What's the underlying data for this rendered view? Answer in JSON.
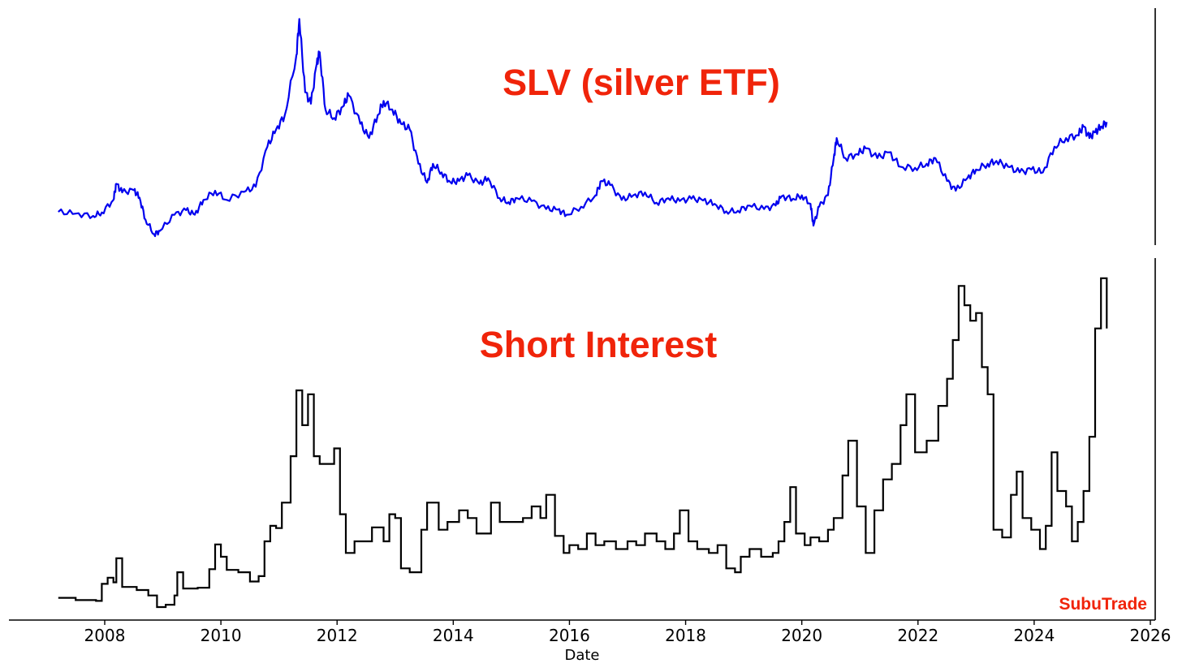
{
  "chart_data": [
    {
      "type": "line",
      "title": "SLV (silver ETF)",
      "color": "#0000ee",
      "grid": false,
      "series": [
        {
          "name": "",
          "points": [
            [
              2007.2,
              14.1
            ],
            [
              2007.5,
              13.8
            ],
            [
              2007.8,
              13.4
            ],
            [
              2007.95,
              14.0
            ],
            [
              2008.15,
              16.2
            ],
            [
              2008.2,
              19.0
            ],
            [
              2008.3,
              17.5
            ],
            [
              2008.5,
              17.9
            ],
            [
              2008.6,
              16.6
            ],
            [
              2008.7,
              12.8
            ],
            [
              2008.85,
              10.2
            ],
            [
              2008.95,
              10.8
            ],
            [
              2009.2,
              13.6
            ],
            [
              2009.4,
              14.4
            ],
            [
              2009.55,
              13.6
            ],
            [
              2009.7,
              16.2
            ],
            [
              2009.9,
              17.8
            ],
            [
              2010.1,
              16.2
            ],
            [
              2010.4,
              17.6
            ],
            [
              2010.6,
              18.5
            ],
            [
              2010.8,
              25.5
            ],
            [
              2010.95,
              28.5
            ],
            [
              2011.1,
              31.0
            ],
            [
              2011.3,
              41.5
            ],
            [
              2011.35,
              47.8
            ],
            [
              2011.45,
              35.0
            ],
            [
              2011.55,
              33.0
            ],
            [
              2011.65,
              40.0
            ],
            [
              2011.7,
              42.0
            ],
            [
              2011.8,
              32.0
            ],
            [
              2011.95,
              30.5
            ],
            [
              2012.1,
              32.5
            ],
            [
              2012.2,
              34.5
            ],
            [
              2012.4,
              29.5
            ],
            [
              2012.55,
              27.0
            ],
            [
              2012.7,
              31.0
            ],
            [
              2012.8,
              33.5
            ],
            [
              2012.95,
              32.0
            ],
            [
              2013.1,
              29.5
            ],
            [
              2013.25,
              28.5
            ],
            [
              2013.4,
              22.5
            ],
            [
              2013.55,
              19.2
            ],
            [
              2013.65,
              22.5
            ],
            [
              2013.8,
              21.0
            ],
            [
              2013.95,
              19.3
            ],
            [
              2014.1,
              19.5
            ],
            [
              2014.25,
              20.5
            ],
            [
              2014.45,
              19.0
            ],
            [
              2014.6,
              20.0
            ],
            [
              2014.8,
              16.5
            ],
            [
              2014.95,
              15.8
            ],
            [
              2015.1,
              16.5
            ],
            [
              2015.35,
              16.0
            ],
            [
              2015.6,
              14.6
            ],
            [
              2015.8,
              14.5
            ],
            [
              2015.95,
              13.6
            ],
            [
              2016.2,
              15.0
            ],
            [
              2016.45,
              17.0
            ],
            [
              2016.55,
              19.5
            ],
            [
              2016.7,
              18.8
            ],
            [
              2016.9,
              16.2
            ],
            [
              2017.1,
              17.0
            ],
            [
              2017.3,
              17.5
            ],
            [
              2017.5,
              15.7
            ],
            [
              2017.7,
              16.5
            ],
            [
              2017.9,
              16.0
            ],
            [
              2018.1,
              16.4
            ],
            [
              2018.3,
              16.1
            ],
            [
              2018.5,
              15.5
            ],
            [
              2018.7,
              14.2
            ],
            [
              2018.9,
              14.3
            ],
            [
              2019.1,
              15.2
            ],
            [
              2019.35,
              14.6
            ],
            [
              2019.55,
              15.2
            ],
            [
              2019.65,
              16.8
            ],
            [
              2019.85,
              16.4
            ],
            [
              2020.0,
              17.0
            ],
            [
              2020.15,
              15.5
            ],
            [
              2020.2,
              11.7
            ],
            [
              2020.3,
              15.0
            ],
            [
              2020.45,
              17.0
            ],
            [
              2020.55,
              23.5
            ],
            [
              2020.6,
              27.0
            ],
            [
              2020.75,
              23.5
            ],
            [
              2020.95,
              24.2
            ],
            [
              2021.1,
              25.2
            ],
            [
              2021.3,
              23.5
            ],
            [
              2021.5,
              24.5
            ],
            [
              2021.7,
              22.0
            ],
            [
              2021.95,
              21.8
            ],
            [
              2022.15,
              22.5
            ],
            [
              2022.3,
              23.5
            ],
            [
              2022.5,
              19.5
            ],
            [
              2022.65,
              17.8
            ],
            [
              2022.85,
              20.0
            ],
            [
              2023.0,
              21.5
            ],
            [
              2023.2,
              22.5
            ],
            [
              2023.35,
              23.0
            ],
            [
              2023.55,
              22.0
            ],
            [
              2023.75,
              21.0
            ],
            [
              2023.95,
              21.5
            ],
            [
              2024.15,
              21.0
            ],
            [
              2024.35,
              25.5
            ],
            [
              2024.55,
              27.0
            ],
            [
              2024.75,
              27.5
            ],
            [
              2024.85,
              29.0
            ],
            [
              2024.95,
              27.0
            ],
            [
              2025.05,
              28.0
            ],
            [
              2025.15,
              29.0
            ],
            [
              2025.25,
              29.8
            ]
          ]
        }
      ]
    },
    {
      "type": "line",
      "title": "Short Interest",
      "color": "#000000",
      "grid": false,
      "xlabel": "Date",
      "xticks": [
        "2008",
        "2010",
        "2012",
        "2014",
        "2016",
        "2018",
        "2020",
        "2022",
        "2024",
        "2026"
      ],
      "series": [
        {
          "name": "",
          "points": [
            [
              2007.2,
              5.2
            ],
            [
              2007.5,
              4.9
            ],
            [
              2007.85,
              4.8
            ],
            [
              2007.95,
              7.0
            ],
            [
              2008.05,
              7.8
            ],
            [
              2008.15,
              7.2
            ],
            [
              2008.2,
              10.3
            ],
            [
              2008.3,
              6.6
            ],
            [
              2008.55,
              6.2
            ],
            [
              2008.75,
              5.5
            ],
            [
              2008.9,
              4.0
            ],
            [
              2009.05,
              4.3
            ],
            [
              2009.2,
              5.5
            ],
            [
              2009.25,
              8.5
            ],
            [
              2009.35,
              6.4
            ],
            [
              2009.6,
              6.5
            ],
            [
              2009.8,
              8.9
            ],
            [
              2009.9,
              12.1
            ],
            [
              2010.0,
              10.5
            ],
            [
              2010.1,
              8.8
            ],
            [
              2010.3,
              8.5
            ],
            [
              2010.5,
              7.3
            ],
            [
              2010.65,
              8.0
            ],
            [
              2010.75,
              12.5
            ],
            [
              2010.85,
              14.5
            ],
            [
              2010.95,
              14.2
            ],
            [
              2011.05,
              17.5
            ],
            [
              2011.2,
              23.5
            ],
            [
              2011.3,
              32.0
            ],
            [
              2011.4,
              27.5
            ],
            [
              2011.5,
              31.5
            ],
            [
              2011.6,
              23.5
            ],
            [
              2011.7,
              22.5
            ],
            [
              2011.8,
              22.5
            ],
            [
              2011.95,
              24.5
            ],
            [
              2012.05,
              16.0
            ],
            [
              2012.15,
              11.0
            ],
            [
              2012.3,
              12.5
            ],
            [
              2012.5,
              12.5
            ],
            [
              2012.6,
              14.3
            ],
            [
              2012.8,
              12.5
            ],
            [
              2012.9,
              16.0
            ],
            [
              2013.0,
              15.5
            ],
            [
              2013.1,
              9.0
            ],
            [
              2013.25,
              8.5
            ],
            [
              2013.45,
              14.0
            ],
            [
              2013.55,
              17.5
            ],
            [
              2013.75,
              14.0
            ],
            [
              2013.9,
              15.0
            ],
            [
              2014.1,
              16.5
            ],
            [
              2014.25,
              15.5
            ],
            [
              2014.4,
              13.5
            ],
            [
              2014.55,
              13.5
            ],
            [
              2014.65,
              17.5
            ],
            [
              2014.8,
              15.0
            ],
            [
              2015.0,
              15.0
            ],
            [
              2015.2,
              15.5
            ],
            [
              2015.35,
              17.0
            ],
            [
              2015.5,
              15.5
            ],
            [
              2015.6,
              18.5
            ],
            [
              2015.75,
              13.2
            ],
            [
              2015.9,
              11.0
            ],
            [
              2016.0,
              12.0
            ],
            [
              2016.15,
              11.5
            ],
            [
              2016.3,
              13.5
            ],
            [
              2016.45,
              12.0
            ],
            [
              2016.6,
              12.5
            ],
            [
              2016.8,
              11.5
            ],
            [
              2017.0,
              12.5
            ],
            [
              2017.15,
              12.0
            ],
            [
              2017.3,
              13.5
            ],
            [
              2017.5,
              12.5
            ],
            [
              2017.65,
              11.5
            ],
            [
              2017.8,
              13.5
            ],
            [
              2017.9,
              16.5
            ],
            [
              2018.05,
              12.5
            ],
            [
              2018.2,
              11.5
            ],
            [
              2018.4,
              11.0
            ],
            [
              2018.55,
              12.0
            ],
            [
              2018.7,
              9.0
            ],
            [
              2018.85,
              8.5
            ],
            [
              2018.95,
              10.5
            ],
            [
              2019.1,
              11.5
            ],
            [
              2019.3,
              10.5
            ],
            [
              2019.5,
              11.0
            ],
            [
              2019.6,
              12.5
            ],
            [
              2019.7,
              15.0
            ],
            [
              2019.8,
              19.5
            ],
            [
              2019.9,
              13.5
            ],
            [
              2020.05,
              12.0
            ],
            [
              2020.15,
              13.0
            ],
            [
              2020.3,
              12.5
            ],
            [
              2020.45,
              14.0
            ],
            [
              2020.55,
              15.5
            ],
            [
              2020.7,
              21.0
            ],
            [
              2020.8,
              25.5
            ],
            [
              2020.95,
              17.0
            ],
            [
              2021.1,
              11.0
            ],
            [
              2021.25,
              16.5
            ],
            [
              2021.4,
              20.5
            ],
            [
              2021.55,
              22.5
            ],
            [
              2021.7,
              27.5
            ],
            [
              2021.8,
              31.5
            ],
            [
              2021.95,
              24.0
            ],
            [
              2022.15,
              25.5
            ],
            [
              2022.35,
              30.0
            ],
            [
              2022.5,
              33.5
            ],
            [
              2022.6,
              38.5
            ],
            [
              2022.7,
              45.5
            ],
            [
              2022.8,
              43.0
            ],
            [
              2022.9,
              41.0
            ],
            [
              2023.0,
              42.0
            ],
            [
              2023.1,
              35.0
            ],
            [
              2023.2,
              31.5
            ],
            [
              2023.3,
              14.0
            ],
            [
              2023.45,
              13.0
            ],
            [
              2023.6,
              18.5
            ],
            [
              2023.7,
              21.5
            ],
            [
              2023.8,
              15.5
            ],
            [
              2023.95,
              14.0
            ],
            [
              2024.1,
              11.5
            ],
            [
              2024.2,
              14.5
            ],
            [
              2024.3,
              24.0
            ],
            [
              2024.4,
              19.0
            ],
            [
              2024.55,
              17.0
            ],
            [
              2024.65,
              12.5
            ],
            [
              2024.75,
              15.0
            ],
            [
              2024.85,
              19.0
            ],
            [
              2024.95,
              26.0
            ],
            [
              2025.05,
              40.0
            ],
            [
              2025.15,
              46.5
            ],
            [
              2025.25,
              40.0
            ]
          ]
        }
      ]
    }
  ],
  "watermark": "SubuTrade"
}
